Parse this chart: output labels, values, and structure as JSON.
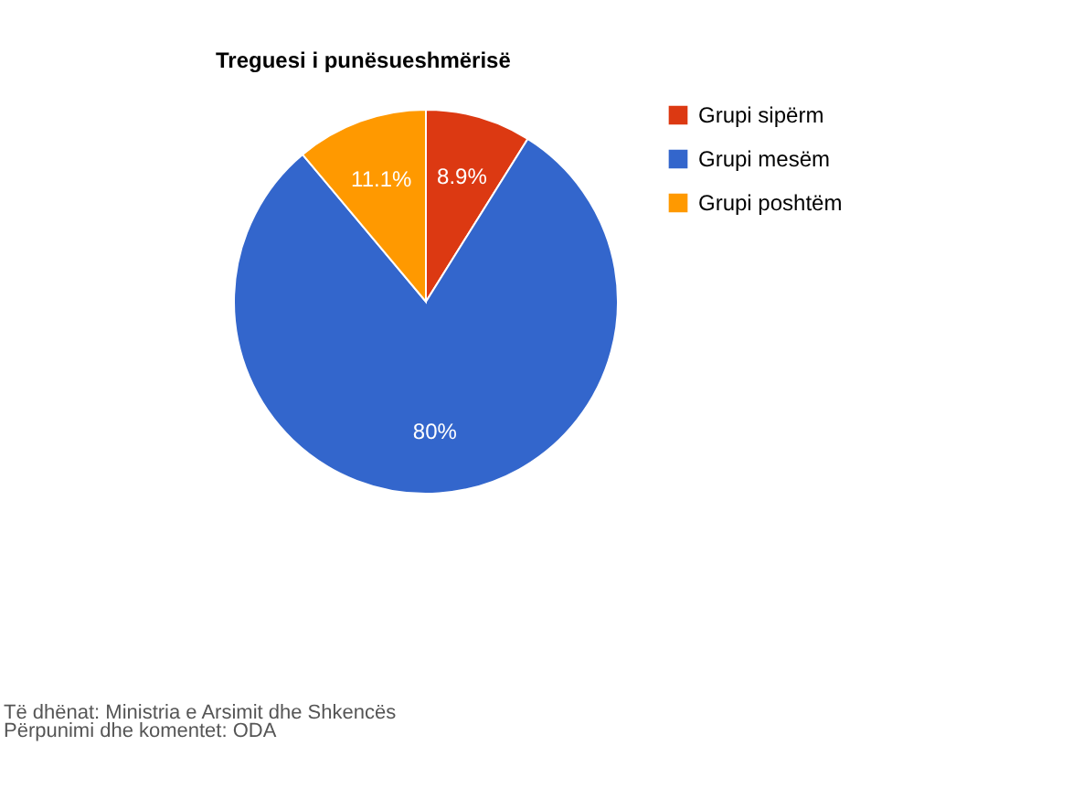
{
  "chart_data": {
    "type": "pie",
    "title": "Treguesi i punësueshmërisë",
    "categories": [
      "Grupi sipërm",
      "Grupi mesëm",
      "Grupi poshtëm"
    ],
    "values": [
      8.9,
      80,
      11.1
    ],
    "colors": [
      "#dc3912",
      "#3366cc",
      "#ff9900"
    ],
    "value_labels": [
      "8.9%",
      "80%",
      "11.1%"
    ],
    "legend": "right",
    "annotations": [
      "Të dhënat: Ministria e Arsimit dhe Shkencës",
      "Përpunimi dhe komentet: ODA"
    ]
  }
}
